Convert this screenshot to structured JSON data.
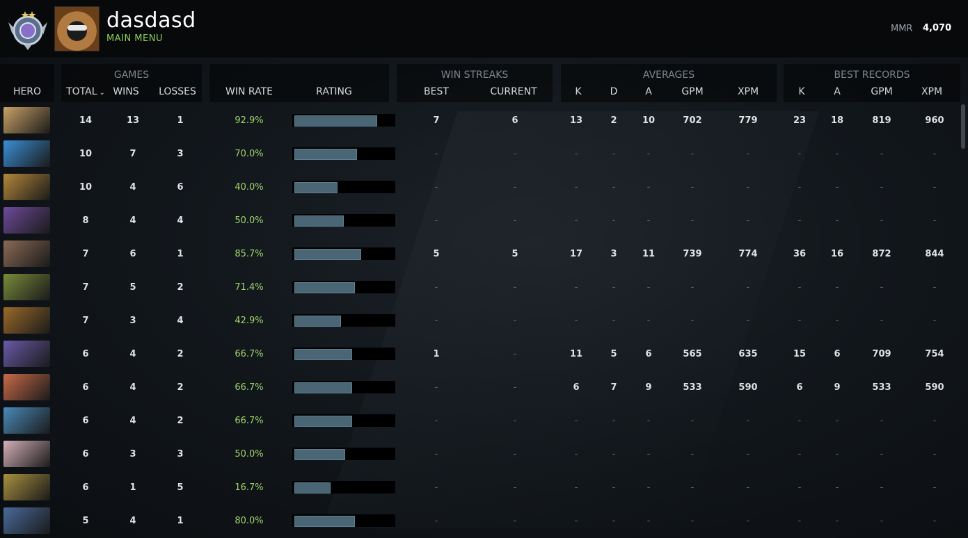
{
  "header": {
    "player_name": "dasdasd",
    "subtitle": "MAIN MENU",
    "mmr_label": "MMR",
    "mmr_value": "4,070"
  },
  "columns": {
    "groups": {
      "games": "GAMES",
      "win_streaks": "WIN STREAKS",
      "averages": "AVERAGES",
      "best_records": "BEST RECORDS"
    },
    "hero": "HERO",
    "total": "TOTAL",
    "wins": "WINS",
    "losses": "LOSSES",
    "win_rate": "WIN RATE",
    "rating": "RATING",
    "best": "BEST",
    "current": "CURRENT",
    "avg_k": "K",
    "avg_d": "D",
    "avg_a": "A",
    "avg_gpm": "GPM",
    "avg_xpm": "XPM",
    "best_k": "K",
    "best_a": "A",
    "best_gpm": "GPM",
    "best_xpm": "XPM"
  },
  "hero_colors": [
    "#c9a167",
    "#3b8fd6",
    "#b3873a",
    "#6d4a9a",
    "#8a6a55",
    "#7a8a3a",
    "#9a6a2a",
    "#6a5aa8",
    "#c86a4a",
    "#4a8ab8",
    "#d4b0b8",
    "#a89040",
    "#4a6a9a"
  ],
  "rows": [
    {
      "total": "14",
      "wins": "13",
      "losses": "1",
      "win_rate": "92.9%",
      "rating": 0.82,
      "best": "7",
      "current": "6",
      "k": "13",
      "d": "2",
      "a": "10",
      "gpm": "702",
      "xpm": "779",
      "bk": "23",
      "ba": "18",
      "bgpm": "819",
      "bxpm": "960"
    },
    {
      "total": "10",
      "wins": "7",
      "losses": "3",
      "win_rate": "70.0%",
      "rating": 0.62,
      "best": "-",
      "current": "-",
      "k": "-",
      "d": "-",
      "a": "-",
      "gpm": "-",
      "xpm": "-",
      "bk": "-",
      "ba": "-",
      "bgpm": "-",
      "bxpm": "-"
    },
    {
      "total": "10",
      "wins": "4",
      "losses": "6",
      "win_rate": "40.0%",
      "rating": 0.43,
      "best": "-",
      "current": "-",
      "k": "-",
      "d": "-",
      "a": "-",
      "gpm": "-",
      "xpm": "-",
      "bk": "-",
      "ba": "-",
      "bgpm": "-",
      "bxpm": "-"
    },
    {
      "total": "8",
      "wins": "4",
      "losses": "4",
      "win_rate": "50.0%",
      "rating": 0.49,
      "best": "-",
      "current": "-",
      "k": "-",
      "d": "-",
      "a": "-",
      "gpm": "-",
      "xpm": "-",
      "bk": "-",
      "ba": "-",
      "bgpm": "-",
      "bxpm": "-"
    },
    {
      "total": "7",
      "wins": "6",
      "losses": "1",
      "win_rate": "85.7%",
      "rating": 0.66,
      "best": "5",
      "current": "5",
      "k": "17",
      "d": "3",
      "a": "11",
      "gpm": "739",
      "xpm": "774",
      "bk": "36",
      "ba": "16",
      "bgpm": "872",
      "bxpm": "844"
    },
    {
      "total": "7",
      "wins": "5",
      "losses": "2",
      "win_rate": "71.4%",
      "rating": 0.6,
      "best": "-",
      "current": "-",
      "k": "-",
      "d": "-",
      "a": "-",
      "gpm": "-",
      "xpm": "-",
      "bk": "-",
      "ba": "-",
      "bgpm": "-",
      "bxpm": "-"
    },
    {
      "total": "7",
      "wins": "3",
      "losses": "4",
      "win_rate": "42.9%",
      "rating": 0.46,
      "best": "-",
      "current": "-",
      "k": "-",
      "d": "-",
      "a": "-",
      "gpm": "-",
      "xpm": "-",
      "bk": "-",
      "ba": "-",
      "bgpm": "-",
      "bxpm": "-"
    },
    {
      "total": "6",
      "wins": "4",
      "losses": "2",
      "win_rate": "66.7%",
      "rating": 0.57,
      "best": "1",
      "current": "-",
      "k": "11",
      "d": "5",
      "a": "6",
      "gpm": "565",
      "xpm": "635",
      "bk": "15",
      "ba": "6",
      "bgpm": "709",
      "bxpm": "754"
    },
    {
      "total": "6",
      "wins": "4",
      "losses": "2",
      "win_rate": "66.7%",
      "rating": 0.57,
      "best": "-",
      "current": "-",
      "k": "6",
      "d": "7",
      "a": "9",
      "gpm": "533",
      "xpm": "590",
      "bk": "6",
      "ba": "9",
      "bgpm": "533",
      "bxpm": "590"
    },
    {
      "total": "6",
      "wins": "4",
      "losses": "2",
      "win_rate": "66.7%",
      "rating": 0.57,
      "best": "-",
      "current": "-",
      "k": "-",
      "d": "-",
      "a": "-",
      "gpm": "-",
      "xpm": "-",
      "bk": "-",
      "ba": "-",
      "bgpm": "-",
      "bxpm": "-"
    },
    {
      "total": "6",
      "wins": "3",
      "losses": "3",
      "win_rate": "50.0%",
      "rating": 0.5,
      "best": "-",
      "current": "-",
      "k": "-",
      "d": "-",
      "a": "-",
      "gpm": "-",
      "xpm": "-",
      "bk": "-",
      "ba": "-",
      "bgpm": "-",
      "bxpm": "-"
    },
    {
      "total": "6",
      "wins": "1",
      "losses": "5",
      "win_rate": "16.7%",
      "rating": 0.36,
      "best": "-",
      "current": "-",
      "k": "-",
      "d": "-",
      "a": "-",
      "gpm": "-",
      "xpm": "-",
      "bk": "-",
      "ba": "-",
      "bgpm": "-",
      "bxpm": "-"
    },
    {
      "total": "5",
      "wins": "4",
      "losses": "1",
      "win_rate": "80.0%",
      "rating": 0.6,
      "best": "-",
      "current": "-",
      "k": "-",
      "d": "-",
      "a": "-",
      "gpm": "-",
      "xpm": "-",
      "bk": "-",
      "ba": "-",
      "bgpm": "-",
      "bxpm": "-"
    }
  ]
}
